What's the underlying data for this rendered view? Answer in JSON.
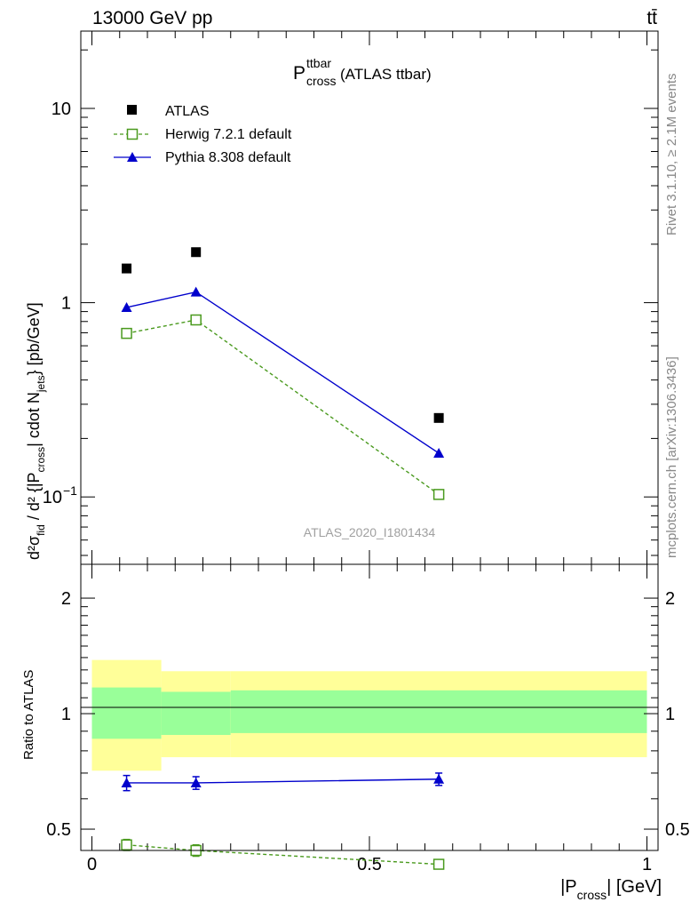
{
  "header": {
    "energy_label": "13000 GeV pp",
    "process_label": "tt̄"
  },
  "side_labels": {
    "rivet": "Rivet 3.1.10, ≥ 2.1M events",
    "mcplots": "mcplots.cern.ch [arXiv:1306.3436]"
  },
  "watermark": "ATLAS_2020_I1801434",
  "chart_data": [
    {
      "type": "scatter",
      "panel": "main",
      "title": {
        "main": "P",
        "sup": "ttbar",
        "sub": "cross",
        "suffix": " (ATLAS ttbar)"
      },
      "ylabel": "d²σ^fid / d² {|P_cross| cdot N_jets} [pb/GeV]",
      "yscale": "log",
      "ylim": [
        0.045,
        25
      ],
      "y_ticks": [
        {
          "value": 0.1,
          "label": "10",
          "exp": "−1"
        },
        {
          "value": 1,
          "label": "1"
        },
        {
          "value": 10,
          "label": "10"
        }
      ],
      "xlim": [
        -0.02,
        1.02
      ],
      "legend_position": "top-left",
      "series": [
        {
          "name": "ATLAS",
          "style": "data",
          "color": "#000000",
          "x": [
            0.0625,
            0.1875,
            0.625
          ],
          "y": [
            1.5,
            1.82,
            0.255
          ]
        },
        {
          "name": "Herwig 7.2.1 default",
          "style": "open-square-dashed",
          "color": "#4a9a1e",
          "x": [
            0.0625,
            0.1875,
            0.625
          ],
          "y": [
            0.695,
            0.815,
            0.103
          ]
        },
        {
          "name": "Pythia 8.308 default",
          "style": "triangle-solid",
          "color": "#0000cc",
          "x": [
            0.0625,
            0.1875,
            0.625
          ],
          "y": [
            0.945,
            1.135,
            0.168
          ]
        }
      ]
    },
    {
      "type": "scatter",
      "panel": "ratio",
      "ylabel": "Ratio to ATLAS",
      "xlabel": "|P_cross| [GeV]",
      "yscale": "log",
      "ylim": [
        0.44,
        2.45
      ],
      "y_ticks": [
        {
          "value": 0.5,
          "label": "0.5"
        },
        {
          "value": 1,
          "label": "1"
        },
        {
          "value": 2,
          "label": "2"
        }
      ],
      "x_ticks": [
        {
          "value": 0,
          "label": "0"
        },
        {
          "value": 0.5,
          "label": "0.5"
        },
        {
          "value": 1,
          "label": "1"
        }
      ],
      "xlim": [
        -0.02,
        1.02
      ],
      "bands": [
        {
          "x0": 0.0,
          "x1": 0.125,
          "yellow": [
            0.71,
            1.38
          ],
          "green": [
            0.86,
            1.17
          ]
        },
        {
          "x0": 0.125,
          "x1": 0.25,
          "yellow": [
            0.77,
            1.29
          ],
          "green": [
            0.88,
            1.14
          ]
        },
        {
          "x0": 0.25,
          "x1": 1.0,
          "yellow": [
            0.77,
            1.29
          ],
          "green": [
            0.89,
            1.15
          ]
        }
      ],
      "band_colors": {
        "yellow": "#ffff99",
        "green": "#99ff99"
      },
      "series": [
        {
          "name": "Herwig 7.2.1 default",
          "style": "open-square-dashed",
          "color": "#4a9a1e",
          "x": [
            0.0625,
            0.1875,
            0.625
          ],
          "y": [
            0.455,
            0.44,
            0.405
          ],
          "err": [
            0.015,
            0.015,
            0.01
          ]
        },
        {
          "name": "Pythia 8.308 default",
          "style": "triangle-solid",
          "color": "#0000cc",
          "x": [
            0.0625,
            0.1875,
            0.625
          ],
          "y": [
            0.66,
            0.66,
            0.675
          ],
          "err": [
            0.03,
            0.025,
            0.025
          ]
        }
      ]
    }
  ]
}
